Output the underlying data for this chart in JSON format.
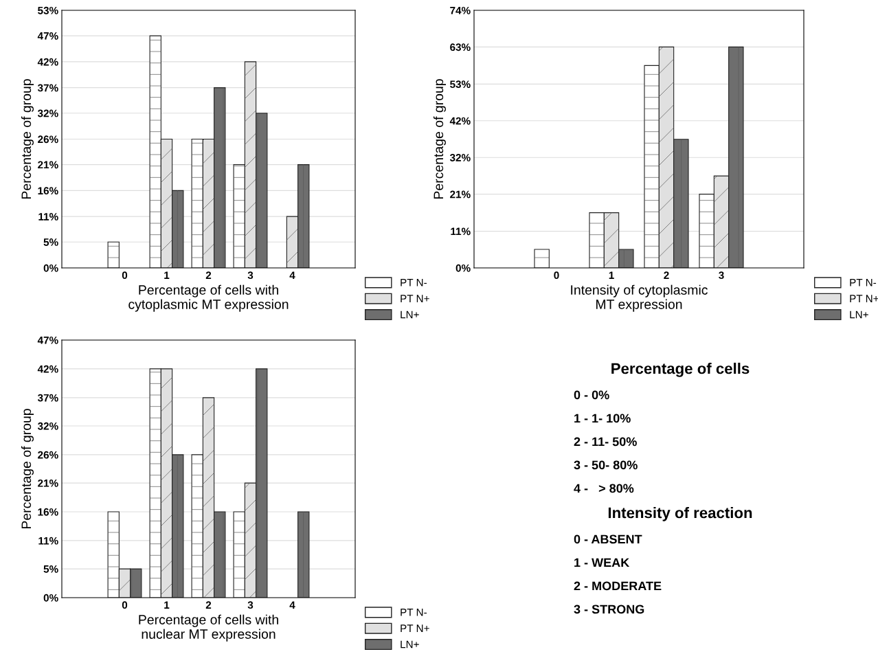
{
  "chart_data": [
    {
      "type": "bar",
      "xlabel": "Percentage of cells with\ncytoplasmic MT expression",
      "ylabel": "Percentage of group",
      "categories": [
        "0",
        "1",
        "2",
        "3",
        "4"
      ],
      "ylim": [
        0,
        52.6
      ],
      "yticks": [
        {
          "value": 0,
          "label": "0%"
        },
        {
          "value": 5.3,
          "label": "5%"
        },
        {
          "value": 10.5,
          "label": "11%"
        },
        {
          "value": 15.8,
          "label": "16%"
        },
        {
          "value": 21.1,
          "label": "21%"
        },
        {
          "value": 26.3,
          "label": "26%"
        },
        {
          "value": 31.6,
          "label": "32%"
        },
        {
          "value": 36.8,
          "label": "37%"
        },
        {
          "value": 42.1,
          "label": "42%"
        },
        {
          "value": 47.4,
          "label": "47%"
        },
        {
          "value": 52.6,
          "label": "53%"
        }
      ],
      "grid": "y",
      "legend": "bottom right",
      "series": [
        {
          "name": "PT N-",
          "color": "#ffffff",
          "values": [
            5.3,
            47.4,
            26.3,
            21.1,
            0
          ]
        },
        {
          "name": "PT N+",
          "color": "#e0e0e0",
          "values": [
            0,
            26.3,
            26.3,
            42.1,
            10.5
          ]
        },
        {
          "name": "LN+",
          "color": "#6e6e6e",
          "values": [
            0,
            15.8,
            36.8,
            31.6,
            21.1
          ]
        }
      ]
    },
    {
      "type": "bar",
      "xlabel": "Intensity of cytoplasmic\nMT expression",
      "ylabel": "Percentage of group",
      "categories": [
        "0",
        "1",
        "2",
        "3"
      ],
      "ylim": [
        0,
        73.7
      ],
      "yticks": [
        {
          "value": 0,
          "label": "0%"
        },
        {
          "value": 10.5,
          "label": "11%"
        },
        {
          "value": 21.1,
          "label": "21%"
        },
        {
          "value": 31.6,
          "label": "32%"
        },
        {
          "value": 42.1,
          "label": "42%"
        },
        {
          "value": 52.6,
          "label": "53%"
        },
        {
          "value": 63.2,
          "label": "63%"
        },
        {
          "value": 73.7,
          "label": "74%"
        }
      ],
      "grid": "y",
      "legend": "bottom right",
      "series": [
        {
          "name": "PT N-",
          "color": "#ffffff",
          "values": [
            5.3,
            15.8,
            57.9,
            21.1
          ]
        },
        {
          "name": "PT N+",
          "color": "#e0e0e0",
          "values": [
            0,
            15.8,
            63.2,
            26.3
          ]
        },
        {
          "name": "LN+",
          "color": "#6e6e6e",
          "values": [
            0,
            5.3,
            36.8,
            63.2
          ]
        }
      ]
    },
    {
      "type": "bar",
      "xlabel": "Percentage of cells with\nnuclear MT expression",
      "ylabel": "Percentage of group",
      "categories": [
        "0",
        "1",
        "2",
        "3",
        "4"
      ],
      "ylim": [
        0,
        47.4
      ],
      "yticks": [
        {
          "value": 0,
          "label": "0%"
        },
        {
          "value": 5.3,
          "label": "5%"
        },
        {
          "value": 10.5,
          "label": "11%"
        },
        {
          "value": 15.8,
          "label": "16%"
        },
        {
          "value": 21.1,
          "label": "21%"
        },
        {
          "value": 26.3,
          "label": "26%"
        },
        {
          "value": 31.6,
          "label": "32%"
        },
        {
          "value": 36.8,
          "label": "37%"
        },
        {
          "value": 42.1,
          "label": "42%"
        },
        {
          "value": 47.4,
          "label": "47%"
        }
      ],
      "grid": "y",
      "legend": "bottom right",
      "series": [
        {
          "name": "PT N-",
          "color": "#ffffff",
          "values": [
            15.8,
            42.1,
            26.3,
            15.8,
            0
          ]
        },
        {
          "name": "PT N+",
          "color": "#e0e0e0",
          "values": [
            5.3,
            42.1,
            36.8,
            21.1,
            0
          ]
        },
        {
          "name": "LN+",
          "color": "#6e6e6e",
          "values": [
            5.3,
            26.3,
            15.8,
            42.1,
            15.8
          ]
        }
      ]
    },
    {
      "type": "other",
      "title": "Percentage of cells",
      "annotations": [
        "0 - 0%",
        "1 - 1- 10%",
        "2 - 11- 50%",
        "3 - 50- 80%",
        "4 -   > 80%"
      ]
    },
    {
      "type": "other",
      "title": "Intensity of reaction",
      "annotations": [
        "0 - ABSENT",
        "1 - WEAK",
        "2 - MODERATE",
        "3 - STRONG"
      ]
    }
  ]
}
